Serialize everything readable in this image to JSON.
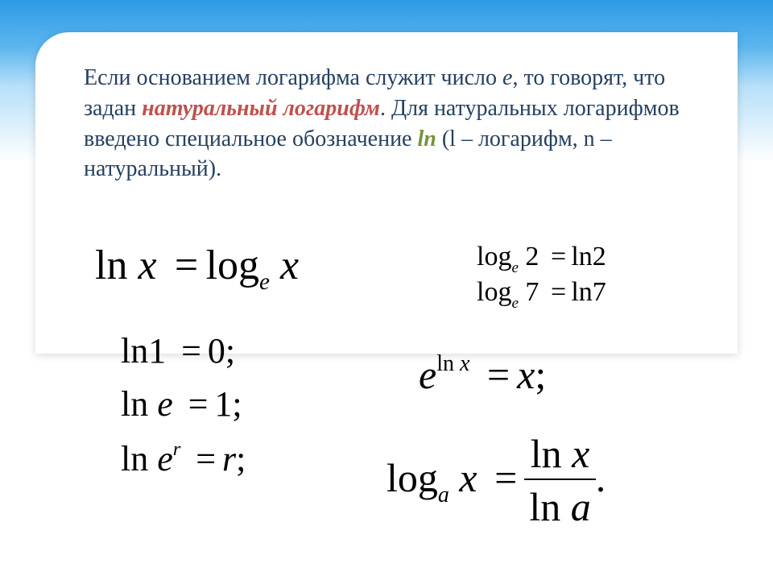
{
  "colors": {
    "text_blue": "#254061",
    "emph_red": "#c0504d",
    "ln_green": "#77933c",
    "bg_grad_top": "#2e9ae6",
    "bg_grad_mid": "#b8e0f9",
    "bg_white": "#ffffff",
    "formula_black": "#000000"
  },
  "paragraph": {
    "t1": "Если основанием логарифма  служит число ",
    "e": "е",
    "t2": ", то говорят, что задан ",
    "emph": "натуральный логарифм",
    "t3": ". Для натуральных логарифмов введено специальное обозначение ",
    "ln": "ln",
    "t4": " (l – логарифм, n – натуральный).",
    "fontsize": 28
  },
  "formulas": {
    "main_def": {
      "lhs_fn": "ln",
      "lhs_sp": " ",
      "lhs_var": "x",
      "eq": "=",
      "rhs_fn": "log",
      "rhs_sub": "e",
      "rhs_sp": " ",
      "rhs_var": "x",
      "fontsize": 52
    },
    "ex1": {
      "lhs_fn": "log",
      "lhs_sub": "e",
      "lhs_arg": " 2",
      "eq": "=",
      "rhs_fn": "ln",
      "rhs_arg": "2",
      "fontsize": 34
    },
    "ex2": {
      "lhs_fn": "log",
      "lhs_sub": "e",
      "lhs_arg": " 7",
      "eq": "=",
      "rhs_fn": "ln",
      "rhs_arg": "7",
      "fontsize": 34
    },
    "ln1": {
      "fn": "ln",
      "arg": "1",
      "eq": "=",
      "val": "0;",
      "fontsize": 44
    },
    "lne": {
      "fn": "ln",
      "sp": " ",
      "arg": "e",
      "eq": "=",
      "val": "1;",
      "fontsize": 44
    },
    "lner": {
      "fn": "ln",
      "sp": " ",
      "base": "e",
      "sup": "r",
      "eq": "=",
      "val": "r",
      "punct": ";",
      "fontsize": 44
    },
    "elnx": {
      "base": "e",
      "sup_fn": "ln",
      "sup_sp": " ",
      "sup_var": "x",
      "eq": "=",
      "rhs": "x",
      "punct": ";",
      "fontsize": 50
    },
    "loga": {
      "fn": "log",
      "sub": "a",
      "sp": " ",
      "var": "x",
      "eq": "=",
      "num_fn": "ln",
      "num_sp": " ",
      "num_var": "x",
      "den_fn": "ln",
      "den_sp": " ",
      "den_var": "a",
      "punct": ".",
      "fontsize": 50
    }
  }
}
